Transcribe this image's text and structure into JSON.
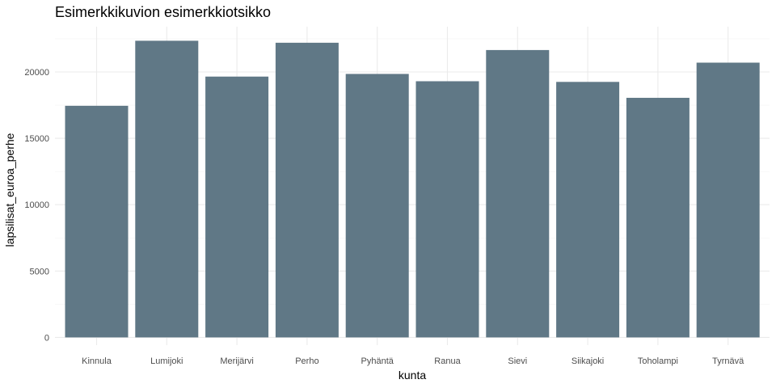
{
  "colors": {
    "bar": "#607886",
    "background": "#ffffff"
  },
  "chart_data": {
    "type": "bar",
    "title": "Esimerkkikuvion esimerkkiotsikko",
    "xlabel": "kunta",
    "ylabel": "lapsilisat_euroa_perhe",
    "categories": [
      "Kinnula",
      "Lumijoki",
      "Merijärvi",
      "Perho",
      "Pyhäntä",
      "Ranua",
      "Sievi",
      "Siikajoki",
      "Toholampi",
      "Tyrnävä"
    ],
    "values": [
      17450,
      22350,
      19650,
      22200,
      19850,
      19300,
      21650,
      19250,
      18050,
      20700
    ],
    "yticks": [
      0,
      5000,
      10000,
      15000,
      20000
    ],
    "ylim": [
      0,
      23500
    ],
    "grid": true,
    "legend": "none"
  }
}
